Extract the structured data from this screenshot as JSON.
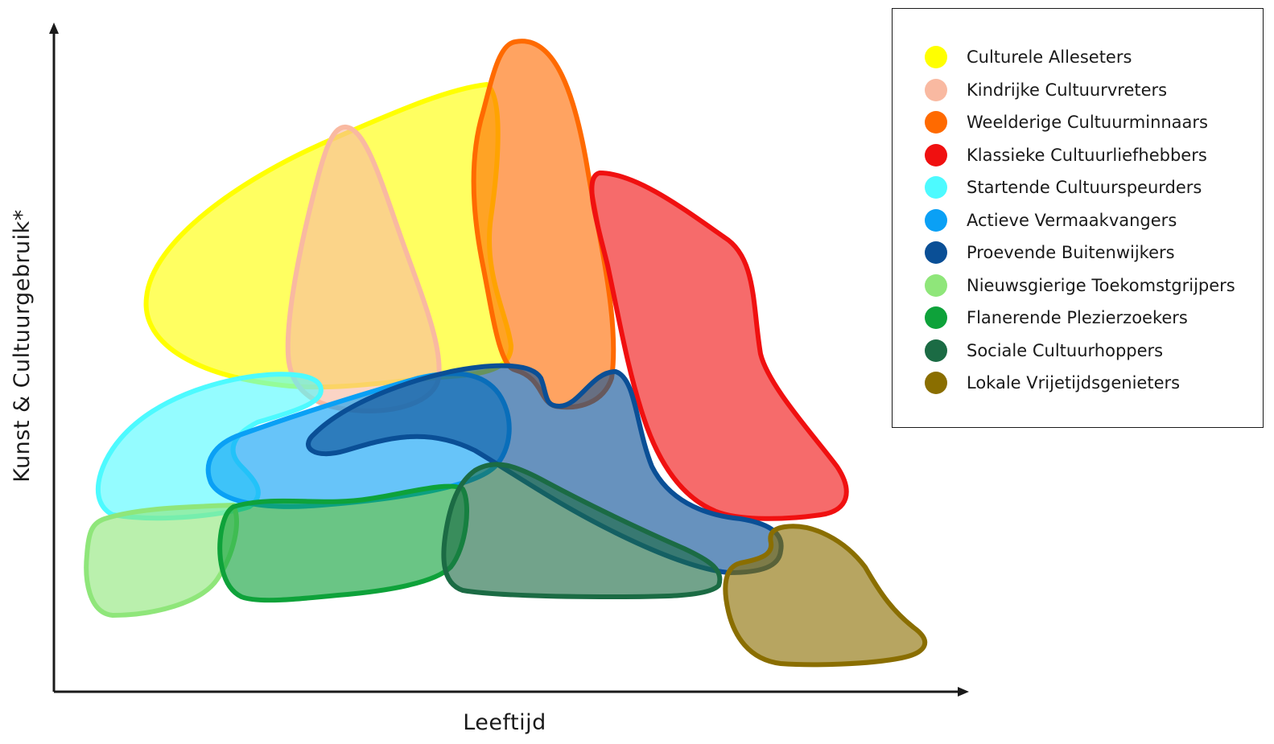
{
  "axes": {
    "x_label": "Leeftijd",
    "y_label": "Kunst & Cultuurgebruik*"
  },
  "segments": [
    {
      "key": "culturele-alleseters",
      "label": "Culturele Alleseters",
      "fill": "#ffff00",
      "stroke": "#ffff00"
    },
    {
      "key": "kindrijke-cultuurvreters",
      "label": "Kindrijke Cultuurvreters",
      "fill": "#f9b9a1",
      "stroke": "#f9b9a1"
    },
    {
      "key": "weelderige-cultuurminnaars",
      "label": "Weelderige Cultuurminnaars",
      "fill": "#ff6a00",
      "stroke": "#ff6a00"
    },
    {
      "key": "klassieke-cultuurliefhebbers",
      "label": "Klassieke Cultuurliefhebbers",
      "fill": "#f01010",
      "stroke": "#f01010"
    },
    {
      "key": "startende-cultuurspeurders",
      "label": "Startende Cultuurspeurders",
      "fill": "#4dfaff",
      "stroke": "#4dfaff"
    },
    {
      "key": "actieve-vermaakvangers",
      "label": "Actieve Vermaakvangers",
      "fill": "#0aa0f5",
      "stroke": "#0aa0f5"
    },
    {
      "key": "proevende-buitenwijkers",
      "label": "Proevende Buitenwijkers",
      "fill": "#0a4f96",
      "stroke": "#0a4f96"
    },
    {
      "key": "nieuwsgierige-toekomstgrijpers",
      "label": "Nieuwsgierige Toekomstgrijpers",
      "fill": "#8fe67a",
      "stroke": "#8fe67a"
    },
    {
      "key": "flanerende-plezierzoekers",
      "label": "Flanerende Plezierzoekers",
      "fill": "#0ea23a",
      "stroke": "#0ea23a"
    },
    {
      "key": "sociale-cultuurhoppers",
      "label": "Sociale Cultuurhoppers",
      "fill": "#1b6b44",
      "stroke": "#1b6b44"
    },
    {
      "key": "lokale-vrijetijdsgenieters",
      "label": "Lokale Vrijetijdsgenieters",
      "fill": "#8a6e00",
      "stroke": "#8a6e00"
    }
  ]
}
